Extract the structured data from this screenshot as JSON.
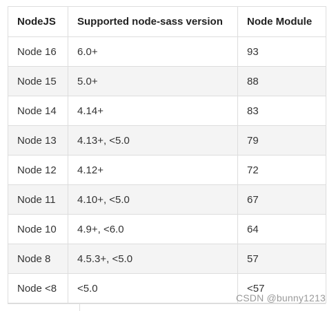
{
  "table": {
    "headers": [
      "NodeJS",
      "Supported node-sass version",
      "Node Module"
    ],
    "rows": [
      [
        "Node 16",
        "6.0+",
        "93"
      ],
      [
        "Node 15",
        "5.0+",
        "88"
      ],
      [
        "Node 14",
        "4.14+",
        "83"
      ],
      [
        "Node 13",
        "4.13+, <5.0",
        "79"
      ],
      [
        "Node 12",
        "4.12+",
        "72"
      ],
      [
        "Node 11",
        "4.10+, <5.0",
        "67"
      ],
      [
        "Node 10",
        "4.9+, <6.0",
        "64"
      ],
      [
        "Node 8",
        "4.5.3+, <5.0",
        "57"
      ],
      [
        "Node <8",
        "<5.0",
        "<57"
      ]
    ]
  },
  "watermark": "CSDN @bunny1213",
  "colors": {
    "border": "#dddddd",
    "stripe": "#f4f4f4",
    "text": "#333333",
    "watermark": "#999999"
  }
}
